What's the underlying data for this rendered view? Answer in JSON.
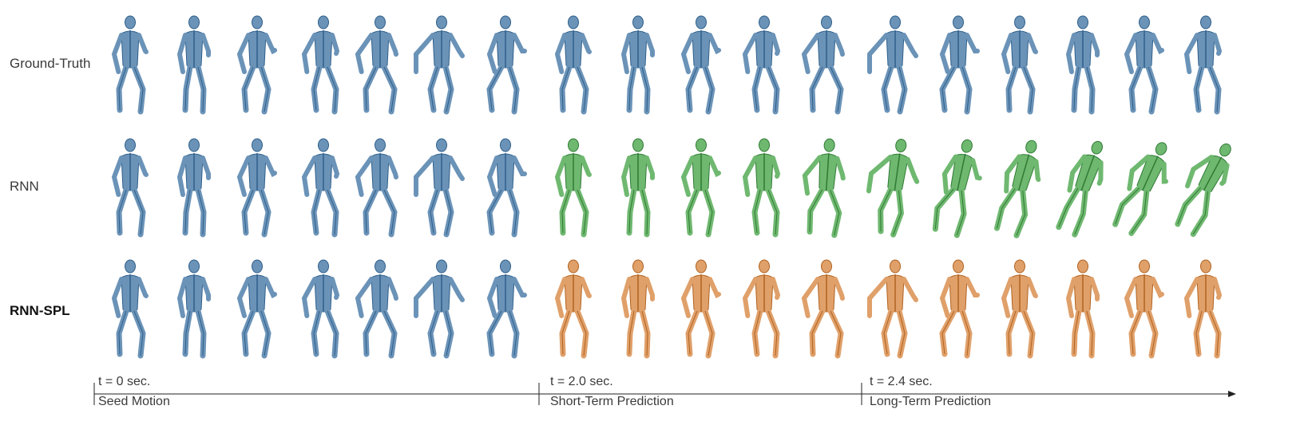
{
  "rows": [
    {
      "label": "Ground-Truth",
      "bold": false,
      "prediction_color": "#6b93b8",
      "prediction_stroke": "#2f5f8a"
    },
    {
      "label": "RNN",
      "bold": false,
      "prediction_color": "#6fb870",
      "prediction_stroke": "#2f7a34"
    },
    {
      "label": "RNN-SPL",
      "bold": true,
      "prediction_color": "#e0a06a",
      "prediction_stroke": "#b0621f"
    }
  ],
  "seed_color": "#6b93b8",
  "seed_stroke": "#2f5f8a",
  "frames_per_row": 18,
  "seed_frames": 7,
  "timeline": {
    "markers": [
      {
        "time": "t = 0 sec.",
        "phase": "Seed Motion"
      },
      {
        "time": "t = 2.0 sec.",
        "phase": "Short-Term Prediction"
      },
      {
        "time": "t = 2.4 sec.",
        "phase": "Long-Term Prediction"
      }
    ]
  }
}
